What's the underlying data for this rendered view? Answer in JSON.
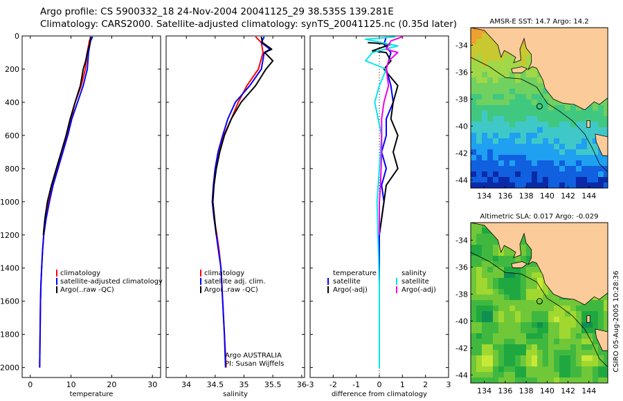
{
  "header": {
    "line1": "Argo profile: CS 5900332_18 24-Nov-2004 20041125_29 38.535S 139.281E",
    "line2": "Climatology: CARS2000. Satellite-adjusted climatology: synTS_20041125.nc (0.35d later)"
  },
  "side_label": "CSIRO 05-Aug-2005 10:28:36",
  "colors": {
    "red": "#ff0000",
    "blue": "#0000ff",
    "black": "#000000",
    "cyan": "#00e5ee",
    "magenta": "#ee00ee"
  },
  "chart_data": [
    {
      "type": "line",
      "id": "temperature",
      "xlabel": "temperature",
      "xlim": [
        -2,
        32
      ],
      "ylim": [
        0,
        2060
      ],
      "y_reversed": true,
      "xticks": [
        0,
        10,
        20,
        30
      ],
      "yticks": [
        0,
        200,
        400,
        600,
        800,
        1000,
        1200,
        1400,
        1600,
        1800,
        2000
      ],
      "show_yticklabels": true,
      "legend": [
        "climatology",
        "satellite-adjusted climatology",
        "Argo(..raw -QC)"
      ],
      "series": [
        {
          "name": "climatology",
          "color": "red",
          "points": [
            [
              15.0,
              5
            ],
            [
              14.5,
              30
            ],
            [
              14.0,
              100
            ],
            [
              13.5,
              200
            ],
            [
              12.5,
              300
            ],
            [
              11.0,
              400
            ],
            [
              10.0,
              500
            ],
            [
              9.0,
              600
            ],
            [
              8.0,
              700
            ],
            [
              6.5,
              800
            ],
            [
              5.5,
              900
            ],
            [
              4.5,
              1000
            ],
            [
              3.8,
              1100
            ],
            [
              3.3,
              1200
            ],
            [
              3.0,
              1300
            ],
            [
              2.8,
              1400
            ],
            [
              2.6,
              1500
            ],
            [
              2.5,
              1600
            ],
            [
              2.4,
              1800
            ],
            [
              2.3,
              2000
            ]
          ]
        },
        {
          "name": "satellite-adjusted climatology",
          "color": "blue",
          "points": [
            [
              15.3,
              5
            ],
            [
              14.8,
              30
            ],
            [
              14.3,
              100
            ],
            [
              14.0,
              200
            ],
            [
              13.0,
              300
            ],
            [
              11.6,
              400
            ],
            [
              10.2,
              500
            ],
            [
              9.2,
              600
            ],
            [
              8.0,
              700
            ],
            [
              6.8,
              800
            ],
            [
              5.6,
              900
            ],
            [
              4.7,
              1000
            ],
            [
              3.9,
              1100
            ],
            [
              3.3,
              1200
            ],
            [
              3.0,
              1300
            ],
            [
              2.8,
              1400
            ],
            [
              2.6,
              1500
            ],
            [
              2.5,
              1600
            ],
            [
              2.4,
              1800
            ],
            [
              2.3,
              2000
            ]
          ]
        },
        {
          "name": "Argo(..raw -QC)",
          "color": "black",
          "points": [
            [
              14.8,
              5
            ],
            [
              14.6,
              50
            ],
            [
              14.0,
              100
            ],
            [
              13.6,
              150
            ],
            [
              13.0,
              200
            ],
            [
              12.3,
              300
            ],
            [
              11.0,
              400
            ],
            [
              9.8,
              500
            ],
            [
              8.8,
              600
            ],
            [
              7.6,
              700
            ],
            [
              6.4,
              800
            ],
            [
              5.2,
              900
            ],
            [
              4.2,
              1000
            ],
            [
              3.6,
              1100
            ],
            [
              3.2,
              1200
            ]
          ]
        }
      ],
      "annotations": []
    },
    {
      "type": "line",
      "id": "salinity",
      "xlabel": "salinity",
      "xlim": [
        33.65,
        36.05
      ],
      "ylim": [
        0,
        2060
      ],
      "y_reversed": true,
      "xticks": [
        34,
        34.5,
        35,
        35.5,
        36
      ],
      "yticks": [
        0,
        200,
        400,
        600,
        800,
        1000,
        1200,
        1400,
        1600,
        1800,
        2000
      ],
      "show_yticklabels": false,
      "legend": [
        "climatology",
        "satellite adj. clim.",
        "Argo(..raw -QC)"
      ],
      "series": [
        {
          "name": "climatology",
          "color": "red",
          "points": [
            [
              35.2,
              5
            ],
            [
              35.3,
              40
            ],
            [
              35.33,
              100
            ],
            [
              35.25,
              200
            ],
            [
              35.05,
              300
            ],
            [
              34.9,
              400
            ],
            [
              34.78,
              500
            ],
            [
              34.65,
              600
            ],
            [
              34.57,
              700
            ],
            [
              34.5,
              800
            ],
            [
              34.47,
              900
            ],
            [
              34.45,
              1000
            ],
            [
              34.48,
              1100
            ],
            [
              34.53,
              1200
            ],
            [
              34.57,
              1300
            ],
            [
              34.6,
              1400
            ],
            [
              34.63,
              1600
            ],
            [
              34.66,
              1800
            ],
            [
              34.69,
              2000
            ]
          ]
        },
        {
          "name": "satellite adj. clim.",
          "color": "blue",
          "points": [
            [
              35.35,
              5
            ],
            [
              35.3,
              40
            ],
            [
              35.45,
              80
            ],
            [
              35.35,
              100
            ],
            [
              35.3,
              200
            ],
            [
              35.1,
              300
            ],
            [
              34.85,
              400
            ],
            [
              34.72,
              500
            ],
            [
              34.63,
              600
            ],
            [
              34.55,
              700
            ],
            [
              34.5,
              800
            ],
            [
              34.47,
              900
            ],
            [
              34.45,
              1000
            ],
            [
              34.48,
              1100
            ],
            [
              34.52,
              1200
            ],
            [
              34.56,
              1300
            ],
            [
              34.6,
              1400
            ],
            [
              34.63,
              1600
            ],
            [
              34.66,
              1800
            ],
            [
              34.68,
              2000
            ]
          ]
        },
        {
          "name": "Argo(..raw -QC)",
          "color": "black",
          "points": [
            [
              35.3,
              5
            ],
            [
              35.32,
              40
            ],
            [
              35.48,
              80
            ],
            [
              35.36,
              100
            ],
            [
              35.5,
              150
            ],
            [
              35.38,
              200
            ],
            [
              35.2,
              300
            ],
            [
              34.95,
              400
            ],
            [
              34.78,
              500
            ],
            [
              34.66,
              600
            ],
            [
              34.58,
              700
            ],
            [
              34.52,
              800
            ],
            [
              34.48,
              900
            ],
            [
              34.46,
              1000
            ],
            [
              34.49,
              1100
            ],
            [
              34.52,
              1200
            ]
          ]
        }
      ],
      "annotations": [
        "Argo AUSTRALIA",
        "PI: Susan Wijffels"
      ]
    },
    {
      "type": "line",
      "id": "difference",
      "xlabel": "difference from climatology",
      "xlim": [
        -3,
        3
      ],
      "ylim": [
        0,
        2060
      ],
      "y_reversed": true,
      "xticks": [
        -3,
        -2,
        -1,
        0,
        1,
        2,
        3
      ],
      "yticks": [
        0,
        200,
        400,
        600,
        800,
        1000,
        1200,
        1400,
        1600,
        1800,
        2000
      ],
      "show_yticklabels": false,
      "legend_groups": [
        {
          "header": "temperature",
          "items": [
            {
              "label": "satellite",
              "color": "blue"
            },
            {
              "label": "Argo(-adj)",
              "color": "black"
            }
          ]
        },
        {
          "header": "salinity",
          "items": [
            {
              "label": "satellite",
              "color": "cyan"
            },
            {
              "label": "Argo(-adj)",
              "color": "magenta"
            }
          ]
        }
      ],
      "series": [
        {
          "name": "temperature satellite",
          "color": "blue",
          "points": [
            [
              0.3,
              5
            ],
            [
              0.2,
              50
            ],
            [
              0.5,
              100
            ],
            [
              0.3,
              200
            ],
            [
              0.5,
              300
            ],
            [
              0.6,
              400
            ],
            [
              0.3,
              500
            ],
            [
              0.3,
              600
            ],
            [
              0.1,
              700
            ],
            [
              0.3,
              800
            ],
            [
              0.1,
              900
            ],
            [
              0.2,
              1000
            ],
            [
              0.1,
              1100
            ],
            [
              0.0,
              1200
            ],
            [
              0.0,
              1300
            ],
            [
              0.0,
              1500
            ],
            [
              0.0,
              2000
            ]
          ]
        },
        {
          "name": "temperature Argo(-adj)",
          "color": "black",
          "points": [
            [
              -0.5,
              40
            ],
            [
              0.5,
              50
            ],
            [
              -0.3,
              90
            ],
            [
              0.3,
              100
            ],
            [
              0.5,
              150
            ],
            [
              0.2,
              200
            ],
            [
              0.8,
              300
            ],
            [
              0.6,
              400
            ],
            [
              0.5,
              500
            ],
            [
              0.8,
              600
            ],
            [
              0.6,
              700
            ],
            [
              0.8,
              800
            ],
            [
              0.3,
              900
            ],
            [
              0.2,
              1000
            ],
            [
              0.1,
              1100
            ],
            [
              0.0,
              1200
            ]
          ]
        },
        {
          "name": "salinity satellite",
          "color": "cyan",
          "points": [
            [
              0.7,
              5
            ],
            [
              -0.6,
              20
            ],
            [
              0.8,
              60
            ],
            [
              -0.3,
              100
            ],
            [
              -0.6,
              150
            ],
            [
              0.3,
              200
            ],
            [
              0.0,
              300
            ],
            [
              -0.2,
              400
            ],
            [
              0.1,
              600
            ],
            [
              0.0,
              800
            ],
            [
              -0.1,
              1000
            ],
            [
              0.0,
              1500
            ],
            [
              0.0,
              2000
            ]
          ]
        },
        {
          "name": "salinity Argo(-adj)",
          "color": "magenta",
          "points": [
            [
              1.0,
              5
            ],
            [
              0.5,
              30
            ],
            [
              0.3,
              80
            ],
            [
              0.8,
              100
            ],
            [
              0.4,
              150
            ],
            [
              0.3,
              200
            ],
            [
              0.4,
              300
            ],
            [
              0.2,
              400
            ],
            [
              0.1,
              500
            ],
            [
              0.1,
              700
            ],
            [
              0.05,
              900
            ],
            [
              0.0,
              1000
            ],
            [
              0.0,
              1200
            ]
          ]
        }
      ],
      "annotations": []
    }
  ],
  "maps": [
    {
      "title": "AMSR-E SST: 14.7 Argo: 14.2",
      "xticks": [
        "134",
        "136",
        "138",
        "140",
        "142",
        "144"
      ],
      "yticks": [
        "-34",
        "-36",
        "-38",
        "-40",
        "-42",
        "-44"
      ],
      "colorbar_field": "sst"
    },
    {
      "title": "Altimetric SLA: 0.017 Argo: -0.029",
      "xticks": [
        "134",
        "136",
        "138",
        "140",
        "142",
        "144"
      ],
      "yticks": [
        "-34",
        "-36",
        "-38",
        "-40",
        "-42",
        "-44"
      ],
      "colorbar_field": "sla"
    }
  ]
}
